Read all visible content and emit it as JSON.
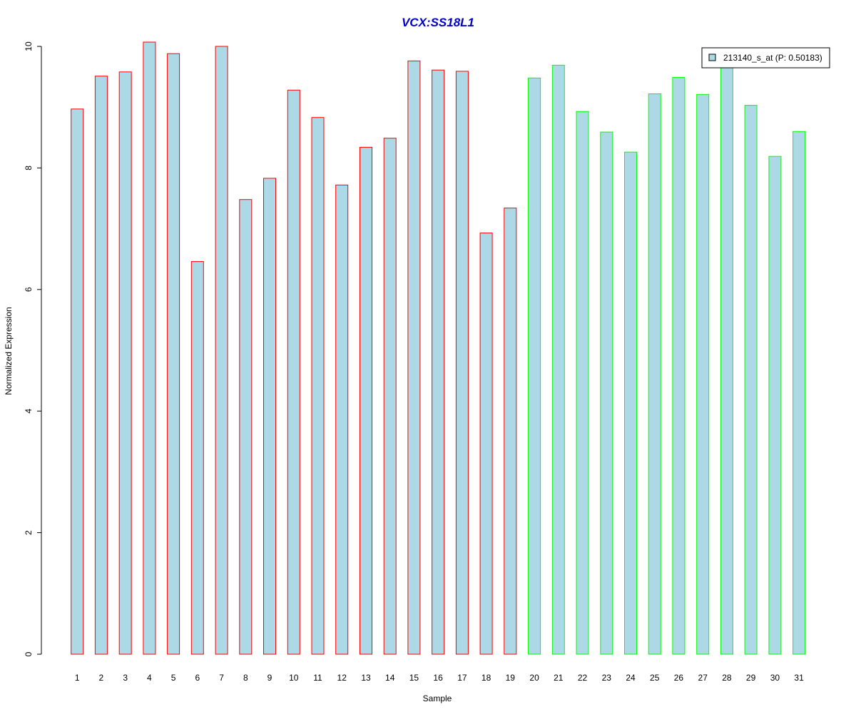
{
  "chart_data": {
    "type": "bar",
    "title": "VCX:SS18L1",
    "xlabel": "Sample",
    "ylabel": "Normalized Expression",
    "ylim": [
      0,
      10
    ],
    "yticks": [
      0,
      2,
      4,
      6,
      8,
      10
    ],
    "grid": false,
    "legend_position": "top-right",
    "categories": [
      "1",
      "2",
      "3",
      "4",
      "5",
      "6",
      "7",
      "8",
      "9",
      "10",
      "11",
      "12",
      "13",
      "14",
      "15",
      "16",
      "17",
      "18",
      "19",
      "20",
      "21",
      "22",
      "23",
      "24",
      "25",
      "26",
      "27",
      "28",
      "29",
      "30",
      "31"
    ],
    "series": [
      {
        "name": "213140_s_at (P: 0.50183)",
        "fill_color": "#add8e6",
        "values": [
          8.97,
          9.51,
          9.58,
          10.07,
          9.88,
          6.46,
          10.0,
          7.48,
          7.83,
          9.28,
          8.83,
          7.72,
          8.34,
          8.49,
          9.76,
          9.61,
          9.59,
          6.93,
          7.34,
          9.48,
          9.69,
          8.93,
          8.59,
          8.26,
          9.22,
          9.49,
          9.21,
          9.67,
          9.03,
          8.19,
          8.6
        ]
      }
    ],
    "group_border_colors": [
      "#ff0000",
      "#ff0000",
      "#ff0000",
      "#ff0000",
      "#ff0000",
      "#ff0000",
      "#ff0000",
      "#ff0000",
      "#ff0000",
      "#ff0000",
      "#ff0000",
      "#ff0000",
      "#ff0000",
      "#ff0000",
      "#ff0000",
      "#ff0000",
      "#ff0000",
      "#ff0000",
      "#ff0000",
      "#00ff00",
      "#00ff00",
      "#00ff00",
      "#00ff00",
      "#00ff00",
      "#00ff00",
      "#00ff00",
      "#00ff00",
      "#00ff00",
      "#00ff00",
      "#00ff00",
      "#00ff00"
    ],
    "title_color": "#0000cc"
  }
}
